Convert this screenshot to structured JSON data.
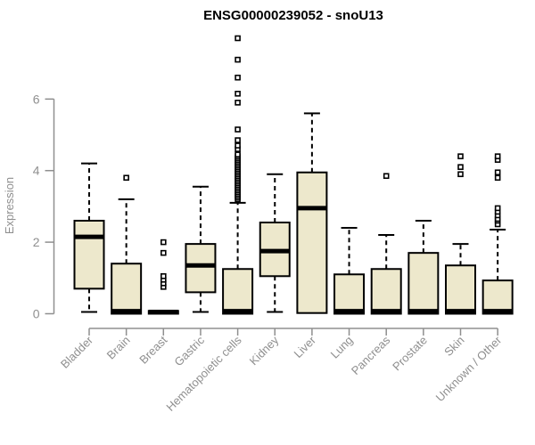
{
  "chart_data": {
    "type": "boxplot",
    "title": "ENSG00000239052 - snoU13",
    "xlabel": "",
    "ylabel": "Expression",
    "yticks": [
      0,
      2,
      4,
      6
    ],
    "ylim": [
      0,
      7.8
    ],
    "grid": false,
    "legend": false,
    "colors": {
      "box_fill": "#EDE8CC",
      "box_stroke": "#000000",
      "median": "#000000",
      "whisker": "#000000",
      "outlier_stroke": "#000000",
      "outlier_fill": "#FFFFFF",
      "axis": "#8f8f8f",
      "label": "#8f8f8f",
      "title": "#000000",
      "background": "#FFFFFF"
    },
    "categories": [
      {
        "label": "Bladder",
        "low": 0.05,
        "q1": 0.7,
        "median": 2.15,
        "q3": 2.6,
        "high": 4.2,
        "outliers": []
      },
      {
        "label": "Brain",
        "low": 0.0,
        "q1": 0.0,
        "median": 0.07,
        "q3": 1.4,
        "high": 3.2,
        "outliers": [
          3.8
        ]
      },
      {
        "label": "Breast",
        "low": 0.0,
        "q1": 0.0,
        "median": 0.05,
        "q3": 0.08,
        "high": 0.08,
        "outliers": [
          0.75,
          0.85,
          0.95,
          1.05,
          1.7,
          2.0
        ]
      },
      {
        "label": "Gastric",
        "low": 0.05,
        "q1": 0.6,
        "median": 1.35,
        "q3": 1.95,
        "high": 3.55,
        "outliers": []
      },
      {
        "label": "Hematopoietic cells",
        "low": 0.0,
        "q1": 0.0,
        "median": 0.07,
        "q3": 1.25,
        "high": 3.1,
        "outliers": [
          3.2,
          3.25,
          3.3,
          3.35,
          3.4,
          3.45,
          3.5,
          3.55,
          3.6,
          3.65,
          3.7,
          3.75,
          3.8,
          3.85,
          3.9,
          3.95,
          4.0,
          4.05,
          4.1,
          4.15,
          4.2,
          4.25,
          4.3,
          4.35,
          4.4,
          4.45,
          4.6,
          4.7,
          4.85,
          5.15,
          5.9,
          6.15,
          6.6,
          7.1,
          7.7
        ]
      },
      {
        "label": "Kidney",
        "low": 0.05,
        "q1": 1.05,
        "median": 1.75,
        "q3": 2.55,
        "high": 3.9,
        "outliers": []
      },
      {
        "label": "Liver",
        "low": 0.02,
        "q1": 0.02,
        "median": 2.95,
        "q3": 3.95,
        "high": 5.6,
        "outliers": []
      },
      {
        "label": "Lung",
        "low": 0.0,
        "q1": 0.0,
        "median": 0.07,
        "q3": 1.1,
        "high": 2.4,
        "outliers": []
      },
      {
        "label": "Pancreas",
        "low": 0.0,
        "q1": 0.0,
        "median": 0.07,
        "q3": 1.25,
        "high": 2.2,
        "outliers": [
          3.85
        ]
      },
      {
        "label": "Prostate",
        "low": 0.0,
        "q1": 0.0,
        "median": 0.07,
        "q3": 1.7,
        "high": 2.6,
        "outliers": []
      },
      {
        "label": "Skin",
        "low": 0.0,
        "q1": 0.0,
        "median": 0.07,
        "q3": 1.35,
        "high": 1.95,
        "outliers": [
          3.9,
          4.1,
          4.4
        ]
      },
      {
        "label": "Unknown / Other",
        "low": 0.0,
        "q1": 0.0,
        "median": 0.07,
        "q3": 0.93,
        "high": 2.35,
        "outliers": [
          2.5,
          2.6,
          2.65,
          2.75,
          2.85,
          2.95,
          3.8,
          3.95,
          4.3,
          4.4
        ]
      }
    ]
  }
}
